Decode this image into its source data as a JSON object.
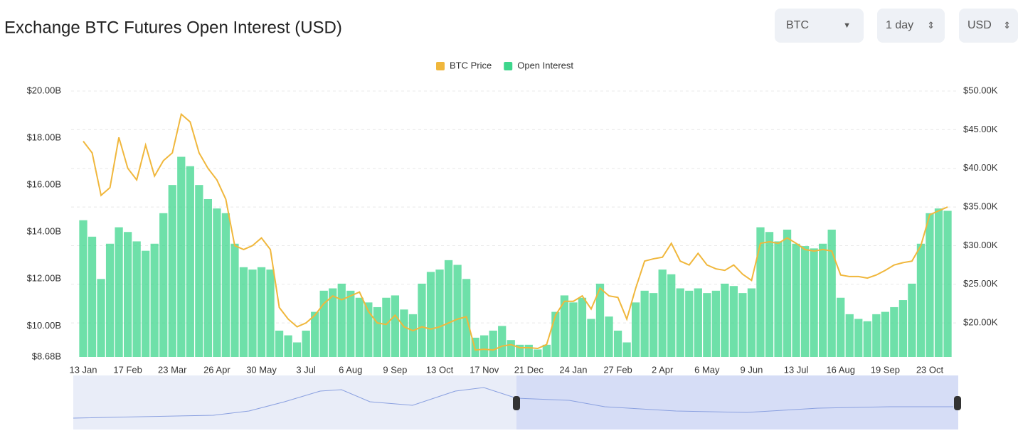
{
  "header": {
    "title": "Exchange BTC Futures Open Interest (USD)"
  },
  "controls": {
    "coin": "BTC",
    "interval": "1 day",
    "currency": "USD"
  },
  "chart_data": {
    "type": "bar",
    "categories": [
      "13 Jan",
      null,
      null,
      null,
      null,
      "17 Feb",
      null,
      null,
      null,
      null,
      "23 Mar",
      null,
      null,
      null,
      null,
      "26 Apr",
      null,
      null,
      null,
      null,
      "30 May",
      null,
      null,
      null,
      null,
      "3 Jul",
      null,
      null,
      null,
      null,
      "6 Aug",
      null,
      null,
      null,
      null,
      "9 Sep",
      null,
      null,
      null,
      null,
      "13 Oct",
      null,
      null,
      null,
      null,
      "17 Nov",
      null,
      null,
      null,
      null,
      "21 Dec",
      null,
      null,
      null,
      null,
      "24 Jan",
      null,
      null,
      null,
      null,
      "27 Feb",
      null,
      null,
      null,
      null,
      "2 Apr",
      null,
      null,
      null,
      null,
      "6 May",
      null,
      null,
      null,
      null,
      "9 Jun",
      null,
      null,
      null,
      null,
      "13 Jul",
      null,
      null,
      null,
      null,
      "16 Aug",
      null,
      null,
      null,
      null,
      "19 Sep",
      null,
      null,
      null,
      null,
      "23 Oct",
      null,
      null
    ],
    "series": [
      {
        "name": "BTC Price",
        "color": "#f0b73c",
        "type": "line",
        "axis": "y2",
        "values": [
          43.5,
          42,
          36.5,
          37.5,
          44,
          40,
          38.5,
          43,
          39,
          41,
          42,
          47,
          46,
          42,
          40,
          38.5,
          36,
          30,
          29.5,
          30,
          31,
          29.5,
          22,
          20.5,
          19.5,
          20,
          21,
          22.5,
          23.5,
          23,
          23.5,
          24,
          21.5,
          20,
          19.8,
          21,
          19.5,
          19,
          19.5,
          19.2,
          19.5,
          20,
          20.5,
          20.8,
          16.5,
          16.6,
          16.5,
          17,
          17.2,
          16.8,
          16.8,
          16.7,
          17.2,
          21,
          22.8,
          22.8,
          23.5,
          21.8,
          24.5,
          23.5,
          23.3,
          20.5,
          24.5,
          28,
          28.3,
          28.5,
          30.3,
          28,
          27.5,
          29,
          27.5,
          27,
          26.8,
          27.5,
          26.3,
          25.5,
          30.3,
          30.5,
          30.3,
          31,
          30.3,
          29.5,
          29.3,
          29.5,
          29.3,
          26.2,
          26,
          26,
          25.8,
          26.2,
          26.8,
          27.5,
          27.8,
          28,
          30,
          34,
          34.5,
          35
        ]
      },
      {
        "name": "Open Interest",
        "color": "#3dd68c",
        "type": "bar",
        "values": [
          14.5,
          13.8,
          12,
          13.5,
          14.2,
          14,
          13.6,
          13.2,
          13.5,
          14.8,
          16,
          17.2,
          16.8,
          16,
          15.4,
          15,
          14.8,
          13.5,
          12.5,
          12.4,
          12.5,
          12.4,
          9.8,
          9.6,
          9.3,
          9.8,
          10.6,
          11.5,
          11.6,
          11.8,
          11.5,
          11.2,
          11,
          10.8,
          11.2,
          11.3,
          10.7,
          10.5,
          11.8,
          12.3,
          12.4,
          12.8,
          12.6,
          12,
          9.5,
          9.6,
          9.8,
          10,
          9.4,
          9.2,
          9.2,
          9,
          9.2,
          10.6,
          11.3,
          11,
          11.2,
          10.3,
          11.8,
          10.4,
          9.8,
          9.3,
          11,
          11.5,
          11.4,
          12.4,
          12.2,
          11.6,
          11.5,
          11.6,
          11.4,
          11.5,
          11.8,
          11.7,
          11.4,
          11.6,
          14.2,
          14,
          13.6,
          14.1,
          13.5,
          13.4,
          13.3,
          13.5,
          14.1,
          11.2,
          10.5,
          10.3,
          10.2,
          10.5,
          10.6,
          10.8,
          11.1,
          11.8,
          13.5,
          14.8,
          15,
          14.9
        ]
      }
    ],
    "ylim": [
      8.68,
      20
    ],
    "yticks": [
      {
        "value": 8.68,
        "label": "$8.68B"
      },
      {
        "value": 10,
        "label": "$10.00B"
      },
      {
        "value": 12,
        "label": "$12.00B"
      },
      {
        "value": 14,
        "label": "$14.00B"
      },
      {
        "value": 16,
        "label": "$16.00B"
      },
      {
        "value": 18,
        "label": "$18.00B"
      },
      {
        "value": 20,
        "label": "$20.00B"
      }
    ],
    "y2lim": [
      15.6,
      50
    ],
    "y2ticks": [
      {
        "value": 20,
        "label": "$20.00K"
      },
      {
        "value": 25,
        "label": "$25.00K"
      },
      {
        "value": 30,
        "label": "$30.00K"
      },
      {
        "value": 35,
        "label": "$35.00K"
      },
      {
        "value": 40,
        "label": "$40.00K"
      },
      {
        "value": 45,
        "label": "$45.00K"
      },
      {
        "value": 50,
        "label": "$50.00K"
      }
    ],
    "grid": true,
    "legend": "top"
  }
}
